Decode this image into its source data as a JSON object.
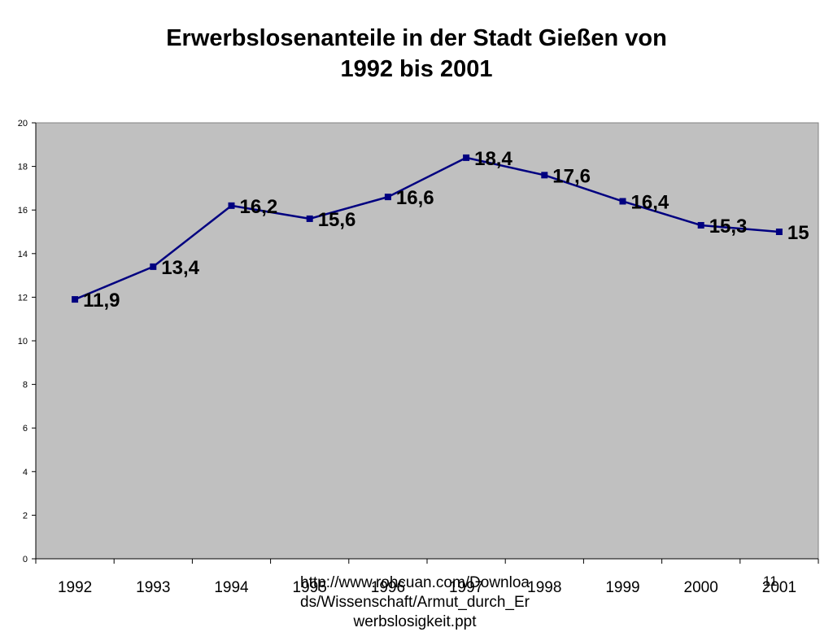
{
  "title": {
    "line1": "Erwerbslosenanteile in der Stadt Gießen von",
    "line2": "1992 bis 2001"
  },
  "source": {
    "line1": "http://www.rohcuan.com/Downloa",
    "line2": "ds/Wissenschaft/Armut_durch_Er",
    "line3": "werbslosigkeit.ppt"
  },
  "page_number": "11",
  "colors": {
    "plot_background": "#c0c0c0",
    "series_line": "#000080",
    "marker": "#000080"
  },
  "chart_data": {
    "type": "line",
    "categories": [
      "1992",
      "1993",
      "1994",
      "1995",
      "1996",
      "1997",
      "1998",
      "1999",
      "2000",
      "2001"
    ],
    "series": [
      {
        "values": [
          11.9,
          13.4,
          16.2,
          15.6,
          16.6,
          18.4,
          17.6,
          16.4,
          15.3,
          15.0
        ],
        "data_labels": [
          "11,9",
          "13,4",
          "16,2",
          "15,6",
          "16,6",
          "18,4",
          "17,6",
          "16,4",
          "15,3",
          "15"
        ]
      }
    ],
    "ylim": [
      0,
      20
    ],
    "yticks": [
      0,
      2,
      4,
      6,
      8,
      10,
      12,
      14,
      16,
      18,
      20
    ],
    "grid": false,
    "legend": "none",
    "marker": "square"
  }
}
